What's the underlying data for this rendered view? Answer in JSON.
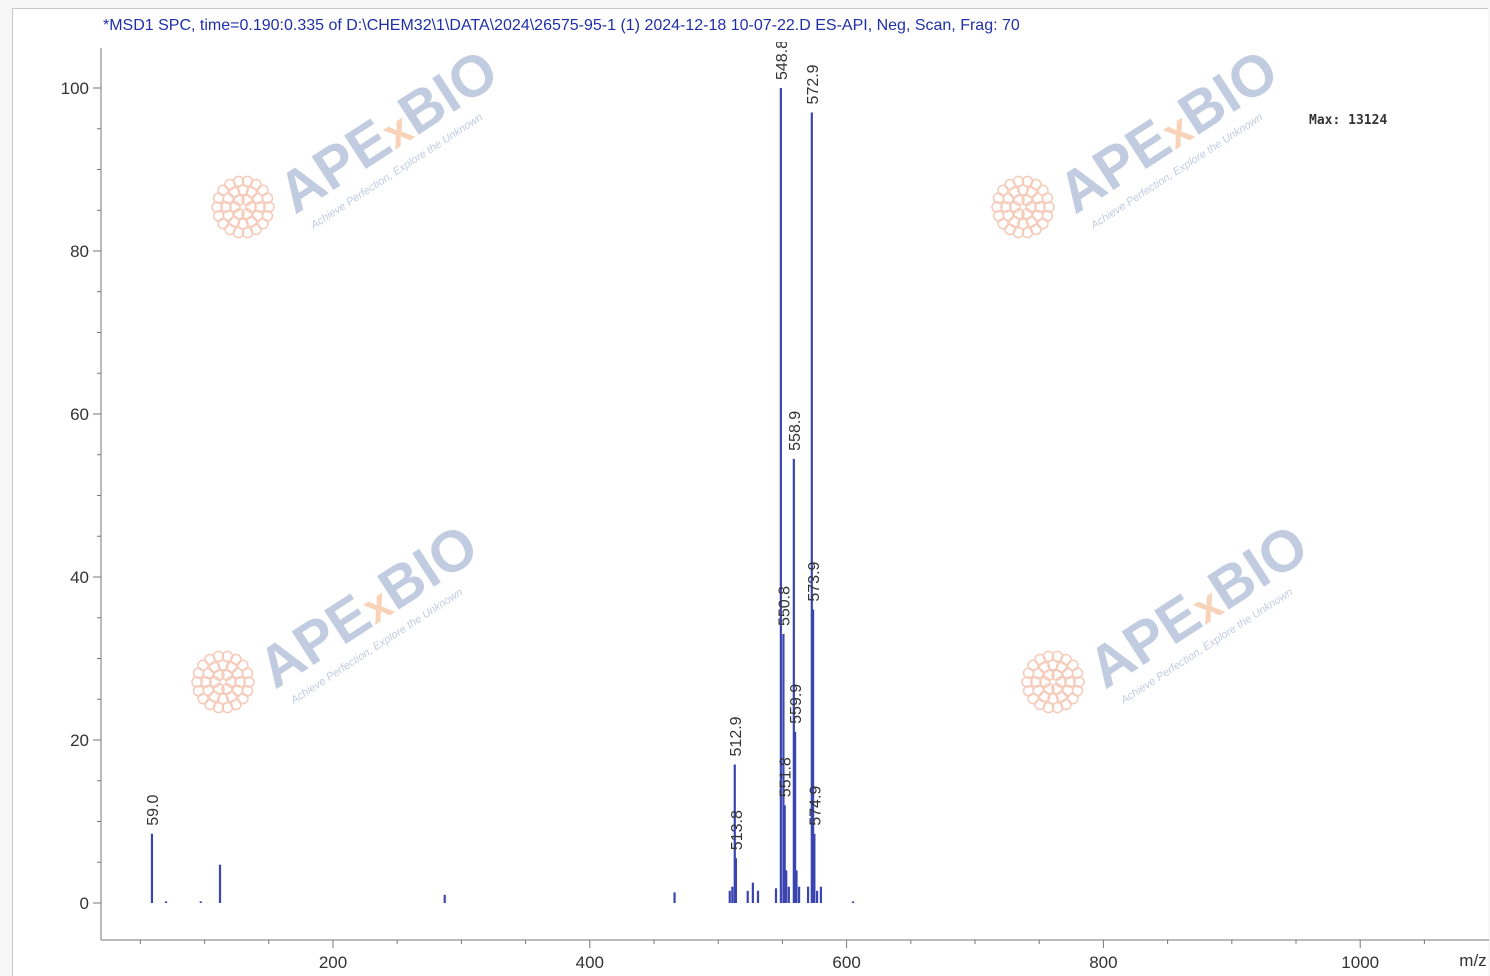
{
  "window": {
    "title": "*MSD1 SPC, time=0.190:0.335 of D:\\CHEM32\\1\\DATA\\2024\\26575-95-1 (1) 2024-12-18 10-07-22.D    ES-API, Neg, Scan, Frag: 70"
  },
  "chart_data": {
    "type": "bar",
    "title": "*MSD1 SPC, time=0.190:0.335 of D:\\CHEM32\\1\\DATA\\2024\\26575-95-1 (1) 2024-12-18 10-07-22.D    ES-API, Neg, Scan, Frag: 70",
    "xlabel": "m/z",
    "ylabel": "",
    "annotation": "Max: 13124",
    "xlim": [
      42,
      1090
    ],
    "ylim": [
      -5,
      105
    ],
    "x_ticks": [
      200,
      400,
      600,
      800,
      1000
    ],
    "y_ticks": [
      0,
      20,
      40,
      60,
      80,
      100
    ],
    "grid": false,
    "color": "#3a45b0",
    "peaks": [
      {
        "x": 59.0,
        "y": 8.5,
        "label": "59.0"
      },
      {
        "x": 112.0,
        "y": 4.7,
        "label": ""
      },
      {
        "x": 512.9,
        "y": 17.0,
        "label": "512.9"
      },
      {
        "x": 513.8,
        "y": 5.5,
        "label": "513.8"
      },
      {
        "x": 548.8,
        "y": 100.0,
        "label": "548.8"
      },
      {
        "x": 550.8,
        "y": 33.0,
        "label": "550.8"
      },
      {
        "x": 551.8,
        "y": 12.0,
        "label": "551.8"
      },
      {
        "x": 558.9,
        "y": 54.5,
        "label": "558.9"
      },
      {
        "x": 559.9,
        "y": 21.0,
        "label": "559.9"
      },
      {
        "x": 572.9,
        "y": 97.0,
        "label": "572.9"
      },
      {
        "x": 573.9,
        "y": 36.0,
        "label": "573.9"
      },
      {
        "x": 574.9,
        "y": 8.5,
        "label": "574.9"
      },
      {
        "x": 287.0,
        "y": 1.0,
        "label": ""
      },
      {
        "x": 466.0,
        "y": 1.3,
        "label": ""
      },
      {
        "x": 509.0,
        "y": 1.5,
        "label": ""
      },
      {
        "x": 511.0,
        "y": 2.0,
        "label": ""
      },
      {
        "x": 523.0,
        "y": 1.5,
        "label": ""
      },
      {
        "x": 527.0,
        "y": 2.5,
        "label": ""
      },
      {
        "x": 531.0,
        "y": 1.5,
        "label": ""
      },
      {
        "x": 545.0,
        "y": 1.8,
        "label": ""
      },
      {
        "x": 553.0,
        "y": 4.0,
        "label": ""
      },
      {
        "x": 555.0,
        "y": 2.0,
        "label": ""
      },
      {
        "x": 561.0,
        "y": 4.0,
        "label": ""
      },
      {
        "x": 563.0,
        "y": 2.0,
        "label": ""
      },
      {
        "x": 570.0,
        "y": 2.0,
        "label": ""
      },
      {
        "x": 577.0,
        "y": 1.5,
        "label": ""
      },
      {
        "x": 580.0,
        "y": 2.0,
        "label": ""
      },
      {
        "x": 70.0,
        "y": 0.2,
        "label": ""
      },
      {
        "x": 97.0,
        "y": 0.2,
        "label": ""
      },
      {
        "x": 605.0,
        "y": 0.2,
        "label": ""
      }
    ]
  },
  "watermarks": [
    {
      "brand": "APE",
      "accent": "x",
      "brand2": "BIO",
      "tagline": "Achieve Perfection, Explore the Unknown"
    },
    {
      "brand": "APE",
      "accent": "x",
      "brand2": "BIO",
      "tagline": "Achieve Perfection, Explore the Unknown"
    },
    {
      "brand": "APE",
      "accent": "x",
      "brand2": "BIO",
      "tagline": "Achieve Perfection, Explore the Unknown"
    },
    {
      "brand": "APE",
      "accent": "x",
      "brand2": "BIO",
      "tagline": "Achieve Perfection, Explore the Unknown"
    }
  ]
}
